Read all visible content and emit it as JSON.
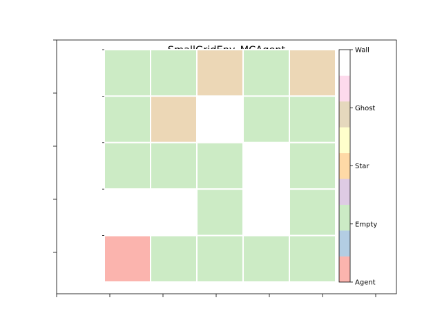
{
  "chart_data": {
    "type": "heatmap",
    "title": "SmallGridEnv_MCAgent",
    "xlabel": "",
    "ylabel": "",
    "rows": 5,
    "cols": 5,
    "cells": [
      [
        "Empty",
        "Empty",
        "Ghost",
        "Empty",
        "Ghost"
      ],
      [
        "Empty",
        "Ghost",
        "Wall",
        "Empty",
        "Empty"
      ],
      [
        "Empty",
        "Empty",
        "Empty",
        "Wall",
        "Empty"
      ],
      [
        "Wall",
        "Wall",
        "Empty",
        "Wall",
        "Empty"
      ],
      [
        "Agent",
        "Empty",
        "Empty",
        "Empty",
        "Empty"
      ]
    ],
    "colorbar": {
      "tick_labels": [
        "Agent",
        "Empty",
        "Star",
        "Ghost",
        "Wall"
      ],
      "tick_positions": [
        0,
        2.25,
        4.5,
        6.75,
        9
      ],
      "segments": [
        "#fbb4ae",
        "#b3cde3",
        "#ccebc5",
        "#decbe4",
        "#fed9a6",
        "#ffffcc",
        "#e5d8bd",
        "#fddaec",
        "#ffffff"
      ]
    },
    "category_colors": {
      "Agent": "#fbb4ae",
      "Empty": "#ccebc5",
      "Star": "#fed9a6",
      "Ghost": "#ecd7b6",
      "Wall": "#ffffff"
    },
    "grid_line_color": "#ffffff"
  }
}
